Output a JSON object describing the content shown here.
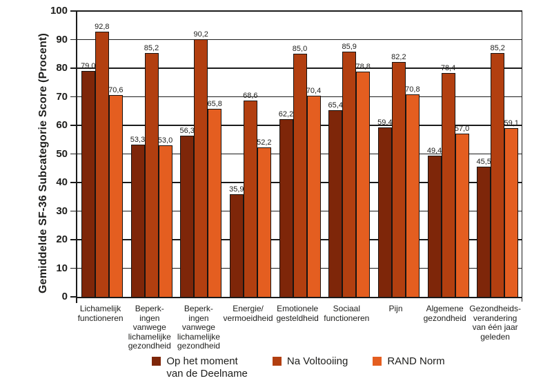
{
  "chart_data": {
    "type": "bar",
    "title": "",
    "ylabel": "Gemiddelde SF-36 Subcategorie Score (Procent)",
    "xlabel": "",
    "ylim": [
      0,
      100
    ],
    "ytick_step": 10,
    "grid": "horizontal",
    "legend_position": "bottom",
    "decimal_separator": ",",
    "frame_color": "#1a1a1a",
    "categories": [
      "Lichamelijk\nfunctioneren",
      "Beperk-\ningen\nvanwege\nlichamelijke\ngezondheid",
      "Beperk-\ningen\nvanwege\nlichamelijke\ngezondheid",
      "Energie/\nvermoeidheid",
      "Emotionele\ngesteldheid",
      "Sociaal\nfunctioneren",
      "Pijn",
      "Algemene\ngezondheid",
      "Gezondheids-\nverandering\nvan één jaar\ngeleden"
    ],
    "series": [
      {
        "name": "Op het moment\nvan de Deelname",
        "color": "#7E2609",
        "values": [
          79.0,
          53.3,
          56.3,
          35.9,
          62.2,
          65.4,
          59.4,
          49.4,
          45.5
        ]
      },
      {
        "name": "Na Voltooiing",
        "color": "#B23F10",
        "values": [
          92.8,
          85.2,
          90.2,
          68.6,
          85.0,
          85.9,
          82.2,
          78.4,
          85.2
        ]
      },
      {
        "name": "RAND Norm",
        "color": "#E45E20",
        "values": [
          70.6,
          53.0,
          65.8,
          52.2,
          70.4,
          78.8,
          70.8,
          57.0,
          59.1
        ]
      }
    ]
  }
}
